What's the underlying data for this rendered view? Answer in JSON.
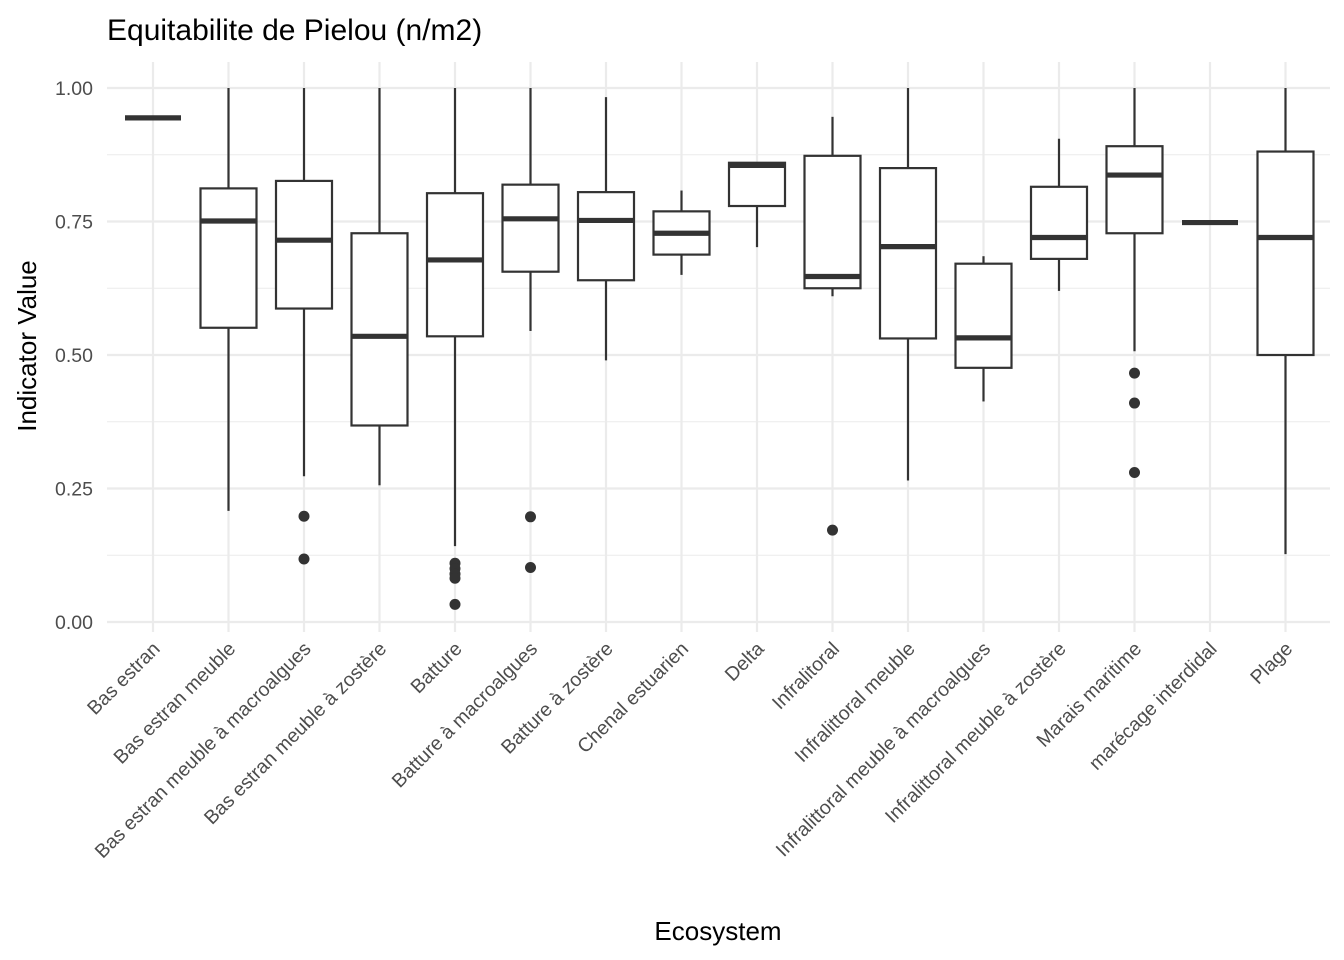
{
  "chart_data": {
    "type": "box",
    "title": "Equitabilite de Pielou (n/m2)",
    "xlabel": "Ecosystem",
    "ylabel": "Indicator Value",
    "ylim": [
      -0.04,
      1.05
    ],
    "yticks": [
      0.0,
      0.25,
      0.5,
      0.75,
      1.0
    ],
    "ytick_labels": [
      "0.00",
      "0.25",
      "0.50",
      "0.75",
      "1.00"
    ],
    "grid": true,
    "categories": [
      "Bas estran",
      "Bas estran meuble",
      "Bas estran meuble à macroalgues",
      "Bas estran meuble à zostère",
      "Batture",
      "Batture à macroalgues",
      "Batture à zostère",
      "Chenal estuarien",
      "Delta",
      "Infralitoral",
      "Infralittoral meuble",
      "Infralittoral meuble à macroalgues",
      "Infralittoral meuble à zostère",
      "Marais maritime",
      "marécage interdidal",
      "Plage"
    ],
    "boxes": [
      {
        "min": 0.944,
        "q1": 0.944,
        "median": 0.944,
        "q3": 0.944,
        "max": 0.944,
        "outliers": []
      },
      {
        "min": 0.208,
        "q1": 0.551,
        "median": 0.751,
        "q3": 0.812,
        "max": 1.0,
        "outliers": []
      },
      {
        "min": 0.273,
        "q1": 0.587,
        "median": 0.715,
        "q3": 0.826,
        "max": 1.0,
        "outliers": [
          0.198,
          0.118
        ]
      },
      {
        "min": 0.256,
        "q1": 0.368,
        "median": 0.535,
        "q3": 0.728,
        "max": 1.0,
        "outliers": []
      },
      {
        "min": 0.142,
        "q1": 0.535,
        "median": 0.678,
        "q3": 0.803,
        "max": 1.0,
        "outliers": [
          0.11,
          0.1,
          0.09,
          0.082,
          0.033
        ]
      },
      {
        "min": 0.545,
        "q1": 0.656,
        "median": 0.755,
        "q3": 0.819,
        "max": 1.0,
        "outliers": [
          0.197,
          0.102
        ]
      },
      {
        "min": 0.49,
        "q1": 0.64,
        "median": 0.752,
        "q3": 0.805,
        "max": 0.983,
        "outliers": []
      },
      {
        "min": 0.65,
        "q1": 0.688,
        "median": 0.728,
        "q3": 0.769,
        "max": 0.808,
        "outliers": []
      },
      {
        "min": 0.702,
        "q1": 0.779,
        "median": 0.855,
        "q3": 0.86,
        "max": 0.86,
        "outliers": []
      },
      {
        "min": 0.61,
        "q1": 0.625,
        "median": 0.647,
        "q3": 0.873,
        "max": 0.946,
        "outliers": [
          0.172
        ]
      },
      {
        "min": 0.265,
        "q1": 0.531,
        "median": 0.703,
        "q3": 0.85,
        "max": 1.0,
        "outliers": []
      },
      {
        "min": 0.413,
        "q1": 0.476,
        "median": 0.532,
        "q3": 0.671,
        "max": 0.685,
        "outliers": []
      },
      {
        "min": 0.62,
        "q1": 0.68,
        "median": 0.72,
        "q3": 0.815,
        "max": 0.905,
        "outliers": []
      },
      {
        "min": 0.507,
        "q1": 0.728,
        "median": 0.837,
        "q3": 0.891,
        "max": 1.0,
        "outliers": [
          0.466,
          0.41,
          0.28
        ]
      },
      {
        "min": 0.748,
        "q1": 0.748,
        "median": 0.748,
        "q3": 0.748,
        "max": 0.748,
        "outliers": []
      },
      {
        "min": 0.127,
        "q1": 0.5,
        "median": 0.72,
        "q3": 0.881,
        "max": 1.0,
        "outliers": []
      }
    ]
  },
  "colors": {
    "grid": "#ebebeb",
    "box_stroke": "#333333",
    "box_fill": "#ffffff",
    "tick_text": "#4d4d4d",
    "text": "#000000"
  }
}
